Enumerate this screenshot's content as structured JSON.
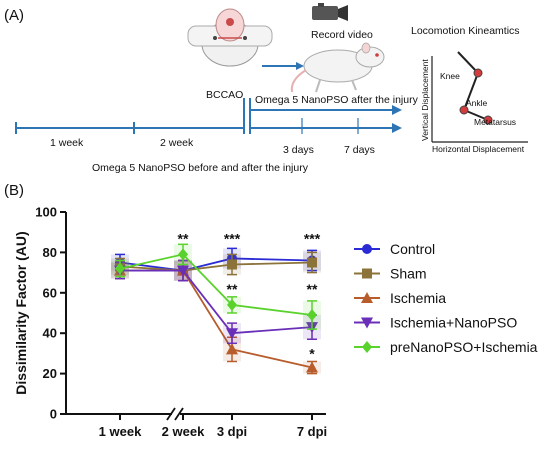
{
  "panel_a": {
    "label": "(A)",
    "record_video": "Record video",
    "loco_title": "Locomotion Kineamtics",
    "knee": "Knee",
    "ankle": "Ankle",
    "metatarsus": "Metatarsus",
    "vertical_axis": "Vertical Displacement",
    "horizontal_axis": "Horizontal Displacement",
    "bccao": "BCCAO",
    "omega_after": "Omega 5 NanoPSO after the injury",
    "week1": "1 week",
    "week2": "2 week",
    "days3": "3 days",
    "days7": "7 days",
    "omega_before_after": "Omega 5 NanoPSO before and after the injury",
    "colors": {
      "arrow": "#2e75b6",
      "rat_eye": "#d23c3c"
    }
  },
  "panel_b": {
    "label": "(B)"
  },
  "chart_data": {
    "type": "line",
    "title": "",
    "xlabel": "",
    "ylabel": "Dissimilarity Factor  (AU)",
    "categories": [
      "1 week",
      "2 week",
      "3 dpi",
      "7 dpi"
    ],
    "ylim": [
      0,
      100
    ],
    "yticks": [
      0,
      20,
      40,
      60,
      80,
      100
    ],
    "axis_break": "between 1 week and 2 week",
    "grid": false,
    "legend_position": "right",
    "series": [
      {
        "name": "Control",
        "color": "#2b2bd6",
        "marker": "circle",
        "values": [
          75,
          71,
          77,
          76
        ],
        "errors": [
          4,
          5,
          5,
          5
        ]
      },
      {
        "name": "Sham",
        "color": "#8b7339",
        "marker": "square",
        "values": [
          73,
          71,
          74,
          75
        ],
        "errors": [
          4,
          5,
          5,
          5
        ]
      },
      {
        "name": "Ischemia",
        "color": "#b85c2c",
        "marker": "triangle-up",
        "values": [
          71,
          71,
          32,
          23
        ],
        "errors": [
          4,
          5,
          6,
          3
        ]
      },
      {
        "name": "Ischemia+NanoPSO",
        "color": "#6a2fb8",
        "marker": "triangle-down",
        "values": [
          71,
          71,
          40,
          43
        ],
        "errors": [
          4,
          5,
          5,
          6
        ]
      },
      {
        "name": "preNanoPSO+Ischemia",
        "color": "#5ad22c",
        "marker": "diamond",
        "values": [
          72,
          79,
          54,
          49
        ],
        "errors": [
          4,
          5,
          4,
          7
        ]
      }
    ],
    "annotations": [
      {
        "category": "2 week",
        "y": 87,
        "text": "**"
      },
      {
        "category": "3 dpi",
        "y": 87,
        "text": "***"
      },
      {
        "category": "7 dpi",
        "y": 87,
        "text": "***"
      },
      {
        "category": "3 dpi",
        "y": 62,
        "text": "**"
      },
      {
        "category": "7 dpi",
        "y": 62,
        "text": "**"
      },
      {
        "category": "7 dpi",
        "y": 30,
        "text": "*"
      }
    ]
  }
}
